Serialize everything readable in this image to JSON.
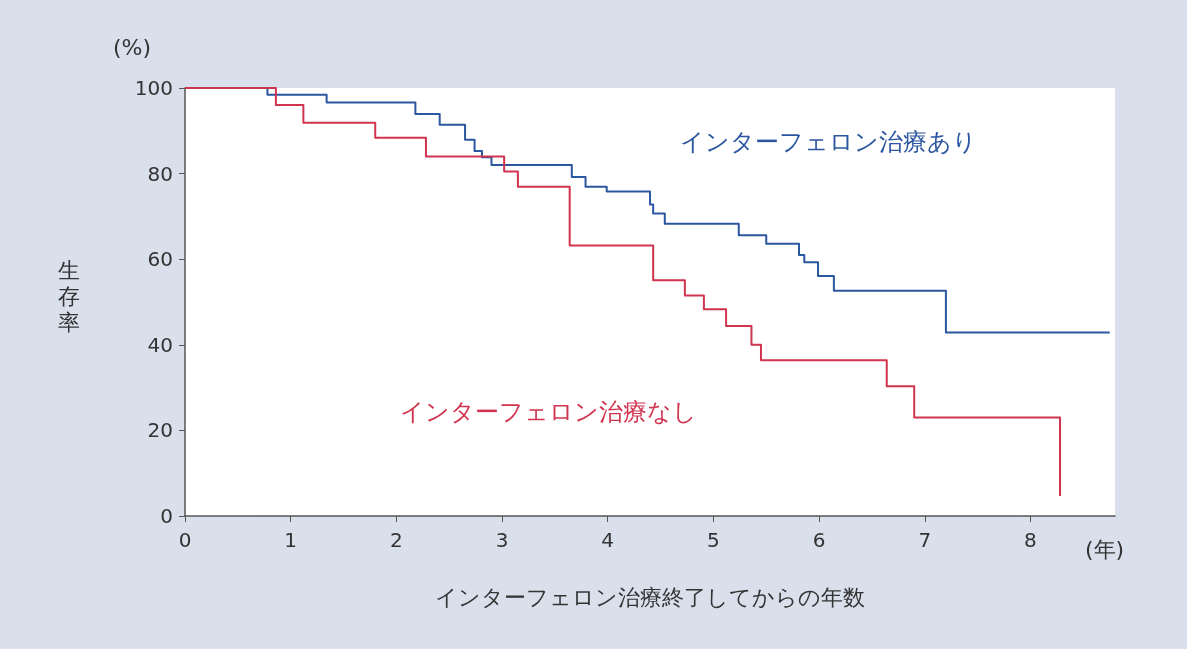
{
  "chart_data": {
    "type": "step",
    "xlabel": "インターフェロン治療終了してからの年数",
    "ylabel": "生存率",
    "annotations": [
      "(%)",
      "(年)"
    ],
    "xlim": [
      0,
      8.8
    ],
    "xticks": [
      0,
      1,
      2,
      3,
      4,
      5,
      6,
      7,
      8
    ],
    "ylim": [
      0,
      100
    ],
    "yticks": [
      0,
      20,
      40,
      60,
      80,
      100
    ],
    "grid": false,
    "legend": false,
    "marker": "none",
    "line_style": "solid",
    "series": [
      {
        "name": "インターフェロン治療あり",
        "color": "#2b56a0",
        "x": [
          0,
          0.78,
          1.34,
          2.18,
          2.41,
          2.65,
          2.74,
          2.81,
          2.9,
          3.66,
          3.79,
          3.99,
          4.4,
          4.43,
          4.54,
          5.24,
          5.5,
          5.81,
          5.86,
          5.99,
          6.14,
          7.2,
          8.75
        ],
        "values": [
          100,
          98.4,
          96.6,
          93.9,
          91.4,
          87.9,
          85.3,
          83.8,
          82,
          79.2,
          76.9,
          75.8,
          72.8,
          70.7,
          68.3,
          65.6,
          63.6,
          61,
          59.3,
          56.1,
          52.6,
          42.9,
          42.9
        ]
      },
      {
        "name": "インターフェロン治療なし",
        "color": "#d0344f",
        "x": [
          0,
          0.86,
          1.12,
          1.8,
          2.28,
          3.02,
          3.15,
          3.64,
          4.43,
          4.73,
          4.91,
          5.12,
          5.36,
          5.45,
          6.64,
          6.9,
          8.28
        ],
        "values": [
          100,
          96,
          91.9,
          88.4,
          84,
          80.5,
          76.9,
          63.2,
          55.1,
          51.5,
          48.3,
          44.4,
          40,
          36.4,
          30.3,
          23,
          4.7
        ]
      }
    ]
  }
}
